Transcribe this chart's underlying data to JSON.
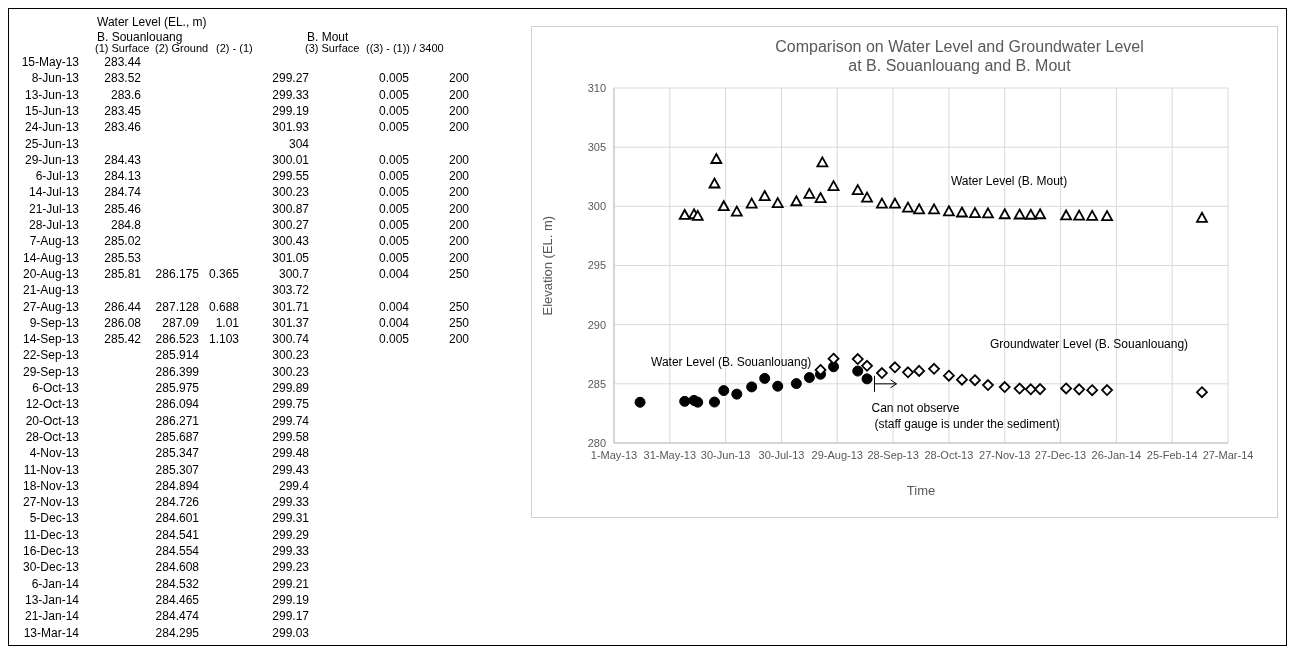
{
  "chart_data": [
    {
      "type": "other",
      "title": "Water Level (EL., m)",
      "annotations": [
        "B. Souanlouang",
        "B. Mout"
      ],
      "data_labels": true,
      "categories": [
        "15-May-13",
        "8-Jun-13",
        "13-Jun-13",
        "15-Jun-13",
        "24-Jun-13",
        "25-Jun-13",
        "29-Jun-13",
        "6-Jul-13",
        "14-Jul-13",
        "21-Jul-13",
        "28-Jul-13",
        "7-Aug-13",
        "14-Aug-13",
        "20-Aug-13",
        "21-Aug-13",
        "27-Aug-13",
        "9-Sep-13",
        "14-Sep-13",
        "22-Sep-13",
        "29-Sep-13",
        "6-Oct-13",
        "12-Oct-13",
        "20-Oct-13",
        "28-Oct-13",
        "4-Nov-13",
        "11-Nov-13",
        "18-Nov-13",
        "27-Nov-13",
        "5-Dec-13",
        "11-Dec-13",
        "16-Dec-13",
        "30-Dec-13",
        "6-Jan-14",
        "13-Jan-14",
        "21-Jan-14",
        "13-Mar-14"
      ],
      "series": [
        {
          "name": "(1) Surface",
          "values": [
            283.44,
            283.52,
            283.6,
            283.45,
            283.46,
            null,
            284.43,
            284.13,
            284.74,
            285.46,
            284.8,
            285.02,
            285.53,
            285.81,
            null,
            286.44,
            286.08,
            285.42,
            null,
            null,
            null,
            null,
            null,
            null,
            null,
            null,
            null,
            null,
            null,
            null,
            null,
            null,
            null,
            null,
            null,
            null
          ]
        },
        {
          "name": "(2) Ground",
          "values": [
            null,
            null,
            null,
            null,
            null,
            null,
            null,
            null,
            null,
            null,
            null,
            null,
            null,
            286.175,
            null,
            287.128,
            287.09,
            286.523,
            285.914,
            286.399,
            285.975,
            286.094,
            286.271,
            285.687,
            285.347,
            285.307,
            284.894,
            284.726,
            284.601,
            284.541,
            284.554,
            284.608,
            284.532,
            284.465,
            284.474,
            284.295
          ]
        },
        {
          "name": "(2) - (1)",
          "values": [
            null,
            null,
            null,
            null,
            null,
            null,
            null,
            null,
            null,
            null,
            null,
            null,
            null,
            0.365,
            null,
            0.688,
            1.01,
            1.103,
            null,
            null,
            null,
            null,
            null,
            null,
            null,
            null,
            null,
            null,
            null,
            null,
            null,
            null,
            null,
            null,
            null,
            null
          ]
        },
        {
          "name": "(3) Surface",
          "values": [
            null,
            299.27,
            299.33,
            299.19,
            301.93,
            304,
            300.01,
            299.55,
            300.23,
            300.87,
            300.27,
            300.43,
            301.05,
            300.7,
            303.72,
            301.71,
            301.37,
            300.74,
            300.23,
            300.23,
            299.89,
            299.75,
            299.74,
            299.58,
            299.48,
            299.43,
            299.4,
            299.33,
            299.31,
            299.29,
            299.33,
            299.23,
            299.21,
            299.19,
            299.17,
            299.03
          ]
        },
        {
          "name": "((3) - (1)) / 3400",
          "values": [
            null,
            0.005,
            0.005,
            0.005,
            0.005,
            null,
            0.005,
            0.005,
            0.005,
            0.005,
            0.005,
            0.005,
            0.005,
            0.004,
            null,
            0.004,
            0.004,
            0.005,
            null,
            null,
            null,
            null,
            null,
            null,
            null,
            null,
            null,
            null,
            null,
            null,
            null,
            null,
            null,
            null,
            null,
            null
          ]
        },
        {
          "values": [
            null,
            200,
            200,
            200,
            200,
            null,
            200,
            200,
            200,
            200,
            200,
            200,
            200,
            250,
            null,
            250,
            250,
            200,
            null,
            null,
            null,
            null,
            null,
            null,
            null,
            null,
            null,
            null,
            null,
            null,
            null,
            null,
            null,
            null,
            null,
            null
          ]
        }
      ]
    },
    {
      "type": "scatter",
      "title": "Comparison on Water Level and Groundwater Level\nat B. Souanlouang and B. Mout",
      "xlabel": "Time",
      "ylabel": "Elevation (EL. m)",
      "grid": true,
      "xlim": [
        "2013-05-01",
        "2014-03-27"
      ],
      "xticks": [
        {
          "value": "2013-05-01",
          "label": "1-May-13"
        },
        {
          "value": "2013-05-31",
          "label": "31-May-13"
        },
        {
          "value": "2013-06-30",
          "label": "30-Jun-13"
        },
        {
          "value": "2013-07-30",
          "label": "30-Jul-13"
        },
        {
          "value": "2013-08-29",
          "label": "29-Aug-13"
        },
        {
          "value": "2013-09-28",
          "label": "28-Sep-13"
        },
        {
          "value": "2013-10-28",
          "label": "28-Oct-13"
        },
        {
          "value": "2013-11-27",
          "label": "27-Nov-13"
        },
        {
          "value": "2013-12-27",
          "label": "27-Dec-13"
        },
        {
          "value": "2014-01-26",
          "label": "26-Jan-14"
        },
        {
          "value": "2014-02-25",
          "label": "25-Feb-14"
        },
        {
          "value": "2014-03-27",
          "label": "27-Mar-14"
        }
      ],
      "ylim": [
        280,
        310
      ],
      "yticks": [
        280,
        285,
        290,
        295,
        300,
        305,
        310
      ],
      "annotations": [
        {
          "text": "Can not observe\n(staff gauge is under the sediment)",
          "x": "2013-09-18",
          "y": 285
        }
      ],
      "series": [
        {
          "name": "Water Level (B. Mout)",
          "color": "#000000",
          "marker": "triangle",
          "x": [
            "2013-06-08",
            "2013-06-13",
            "2013-06-15",
            "2013-06-24",
            "2013-06-25",
            "2013-06-29",
            "2013-07-06",
            "2013-07-14",
            "2013-07-21",
            "2013-07-28",
            "2013-08-07",
            "2013-08-14",
            "2013-08-20",
            "2013-08-21",
            "2013-08-27",
            "2013-09-09",
            "2013-09-14",
            "2013-09-22",
            "2013-09-29",
            "2013-10-06",
            "2013-10-12",
            "2013-10-20",
            "2013-10-28",
            "2013-11-04",
            "2013-11-11",
            "2013-11-18",
            "2013-11-27",
            "2013-12-05",
            "2013-12-11",
            "2013-12-16",
            "2013-12-30",
            "2014-01-06",
            "2014-01-13",
            "2014-01-21",
            "2014-03-13"
          ],
          "values": [
            299.27,
            299.33,
            299.19,
            301.93,
            304,
            300.01,
            299.55,
            300.23,
            300.87,
            300.27,
            300.43,
            301.05,
            300.7,
            303.72,
            301.71,
            301.37,
            300.74,
            300.23,
            300.23,
            299.89,
            299.75,
            299.74,
            299.58,
            299.48,
            299.43,
            299.4,
            299.33,
            299.31,
            299.29,
            299.33,
            299.23,
            299.21,
            299.19,
            299.17,
            299.03
          ]
        },
        {
          "name": "Water Level (B. Souanlouang)",
          "color": "#000000",
          "marker": "circle",
          "x": [
            "2013-05-15",
            "2013-06-08",
            "2013-06-13",
            "2013-06-15",
            "2013-06-24",
            "2013-06-29",
            "2013-07-06",
            "2013-07-14",
            "2013-07-21",
            "2013-07-28",
            "2013-08-07",
            "2013-08-14",
            "2013-08-20",
            "2013-08-27",
            "2013-09-09",
            "2013-09-14"
          ],
          "values": [
            283.44,
            283.52,
            283.6,
            283.45,
            283.46,
            284.43,
            284.13,
            284.74,
            285.46,
            284.8,
            285.02,
            285.53,
            285.81,
            286.44,
            286.08,
            285.42
          ]
        },
        {
          "name": "Groundwater Level (B. Souanlouang)",
          "color": "#000000",
          "marker": "diamond",
          "x": [
            "2013-08-20",
            "2013-08-27",
            "2013-09-09",
            "2013-09-14",
            "2013-09-22",
            "2013-09-29",
            "2013-10-06",
            "2013-10-12",
            "2013-10-20",
            "2013-10-28",
            "2013-11-04",
            "2013-11-11",
            "2013-11-18",
            "2013-11-27",
            "2013-12-05",
            "2013-12-11",
            "2013-12-16",
            "2013-12-30",
            "2014-01-06",
            "2014-01-13",
            "2014-01-21",
            "2014-03-13"
          ],
          "values": [
            286.175,
            287.128,
            287.09,
            286.523,
            285.914,
            286.399,
            285.975,
            286.094,
            286.271,
            285.687,
            285.347,
            285.307,
            284.894,
            284.726,
            284.601,
            284.541,
            284.554,
            284.608,
            284.532,
            284.465,
            284.474,
            284.295
          ]
        }
      ]
    }
  ]
}
